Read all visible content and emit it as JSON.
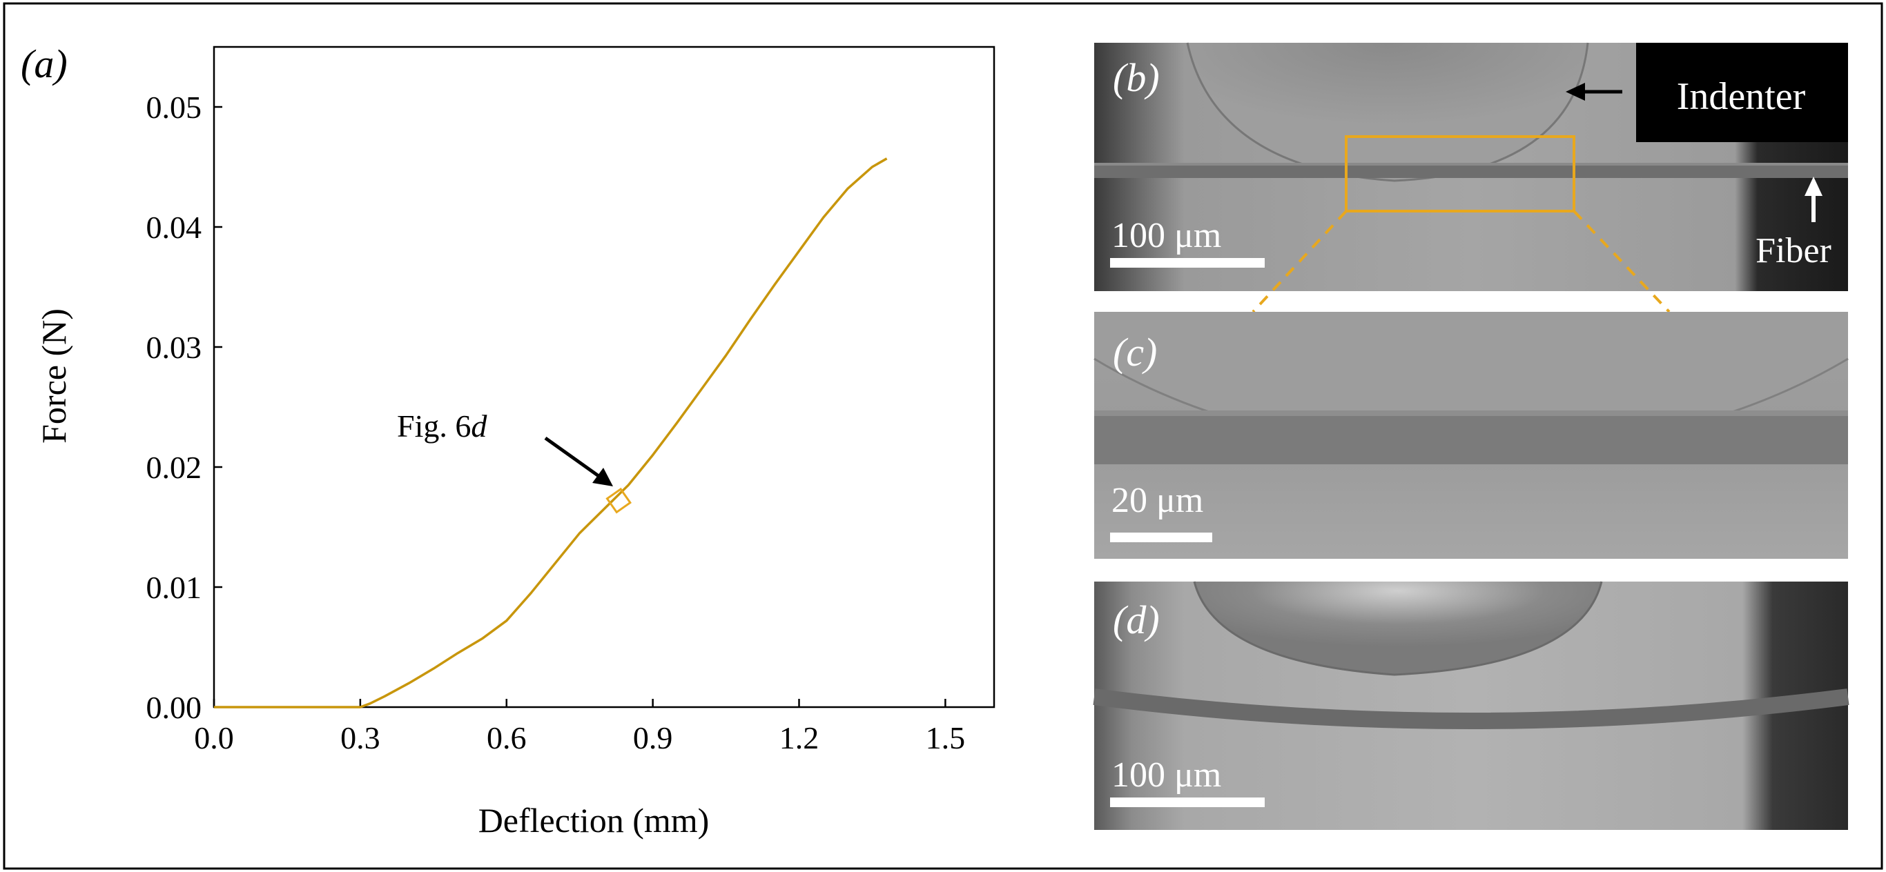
{
  "chart_data": {
    "type": "line",
    "panel_label": "(a)",
    "title": "",
    "xlabel": "Deflection (mm)",
    "ylabel": "Force (N)",
    "xlim": [
      0.0,
      1.6
    ],
    "ylim": [
      0.0,
      0.055
    ],
    "x_ticks": [
      0.0,
      0.3,
      0.6,
      0.9,
      1.2,
      1.5
    ],
    "x_tick_labels": [
      "0.0",
      "0.3",
      "0.6",
      "0.9",
      "1.2",
      "1.5"
    ],
    "y_ticks": [
      0.0,
      0.01,
      0.02,
      0.03,
      0.04,
      0.05
    ],
    "y_tick_labels": [
      "0.00",
      "0.01",
      "0.02",
      "0.03",
      "0.04",
      "0.05"
    ],
    "grid": false,
    "series": [
      {
        "name": "force-deflection",
        "color": "#C8960C",
        "x": [
          0.0,
          0.05,
          0.1,
          0.15,
          0.2,
          0.25,
          0.3,
          0.32,
          0.35,
          0.4,
          0.45,
          0.5,
          0.55,
          0.6,
          0.65,
          0.7,
          0.75,
          0.8,
          0.85,
          0.9,
          0.95,
          1.0,
          1.05,
          1.1,
          1.15,
          1.2,
          1.25,
          1.3,
          1.35,
          1.38
        ],
        "y": [
          0.0,
          0.0,
          0.0,
          0.0,
          0.0,
          0.0,
          0.0,
          0.0003,
          0.0009,
          0.002,
          0.0032,
          0.0045,
          0.0057,
          0.0072,
          0.0095,
          0.012,
          0.0145,
          0.0165,
          0.0185,
          0.021,
          0.0237,
          0.0265,
          0.0293,
          0.0323,
          0.0352,
          0.038,
          0.0408,
          0.0432,
          0.045,
          0.0457
        ]
      }
    ],
    "annotations": [
      {
        "text": "Fig. 6",
        "text_italic": "d",
        "x": 0.83,
        "y": 0.0172,
        "marker": "open-square"
      }
    ]
  },
  "panels": {
    "b": {
      "label": "(b)",
      "indenter_label": "Indenter",
      "fiber_label": "Fiber",
      "scale_bar_label": "100 μm"
    },
    "c": {
      "label": "(c)",
      "scale_bar_label": "20 μm"
    },
    "d": {
      "label": "(d)",
      "scale_bar_label": "100 μm"
    }
  },
  "colors": {
    "curve": "#C8960C",
    "zoom_box": "#E8A81E",
    "axis": "#000000"
  }
}
